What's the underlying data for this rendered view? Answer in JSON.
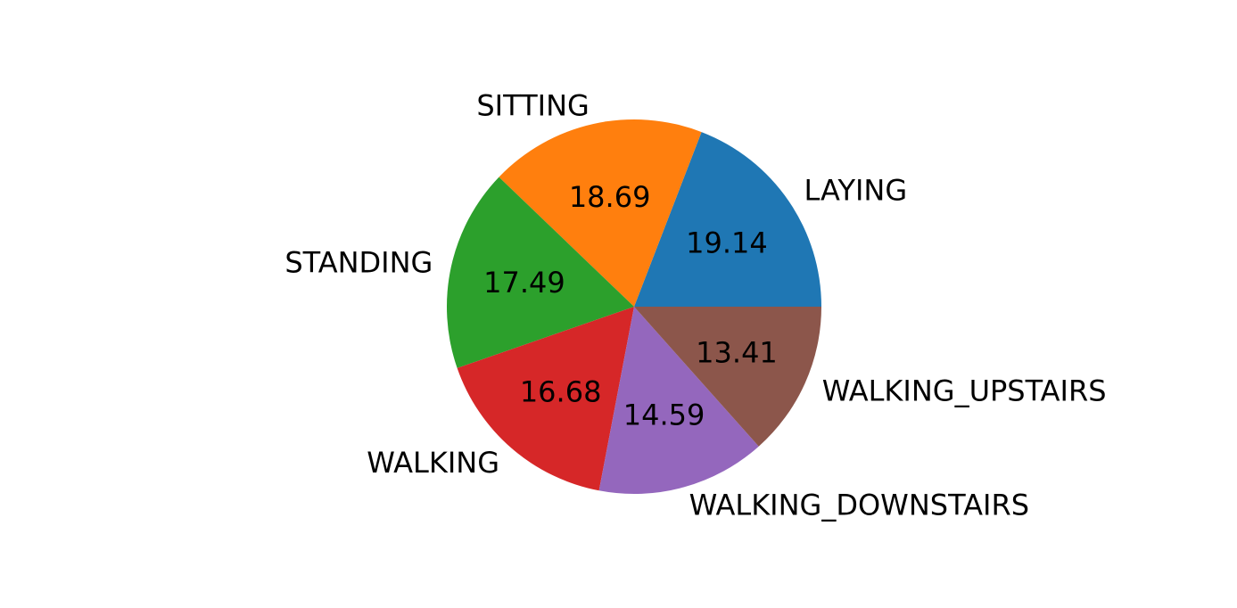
{
  "chart_data": {
    "type": "pie",
    "categories": [
      "LAYING",
      "SITTING",
      "STANDING",
      "WALKING",
      "WALKING_DOWNSTAIRS",
      "WALKING_UPSTAIRS"
    ],
    "values": [
      19.14,
      18.69,
      17.49,
      16.68,
      14.59,
      13.41
    ],
    "value_labels": [
      "19.14",
      "18.69",
      "17.49",
      "16.68",
      "14.59",
      "13.41"
    ],
    "colors": [
      "#1f77b4",
      "#ff7f0e",
      "#2ca02c",
      "#d62728",
      "#9467bd",
      "#8c564b"
    ],
    "start_angle_deg": 0,
    "direction": "counterclockwise",
    "title": "",
    "legend": "none"
  }
}
